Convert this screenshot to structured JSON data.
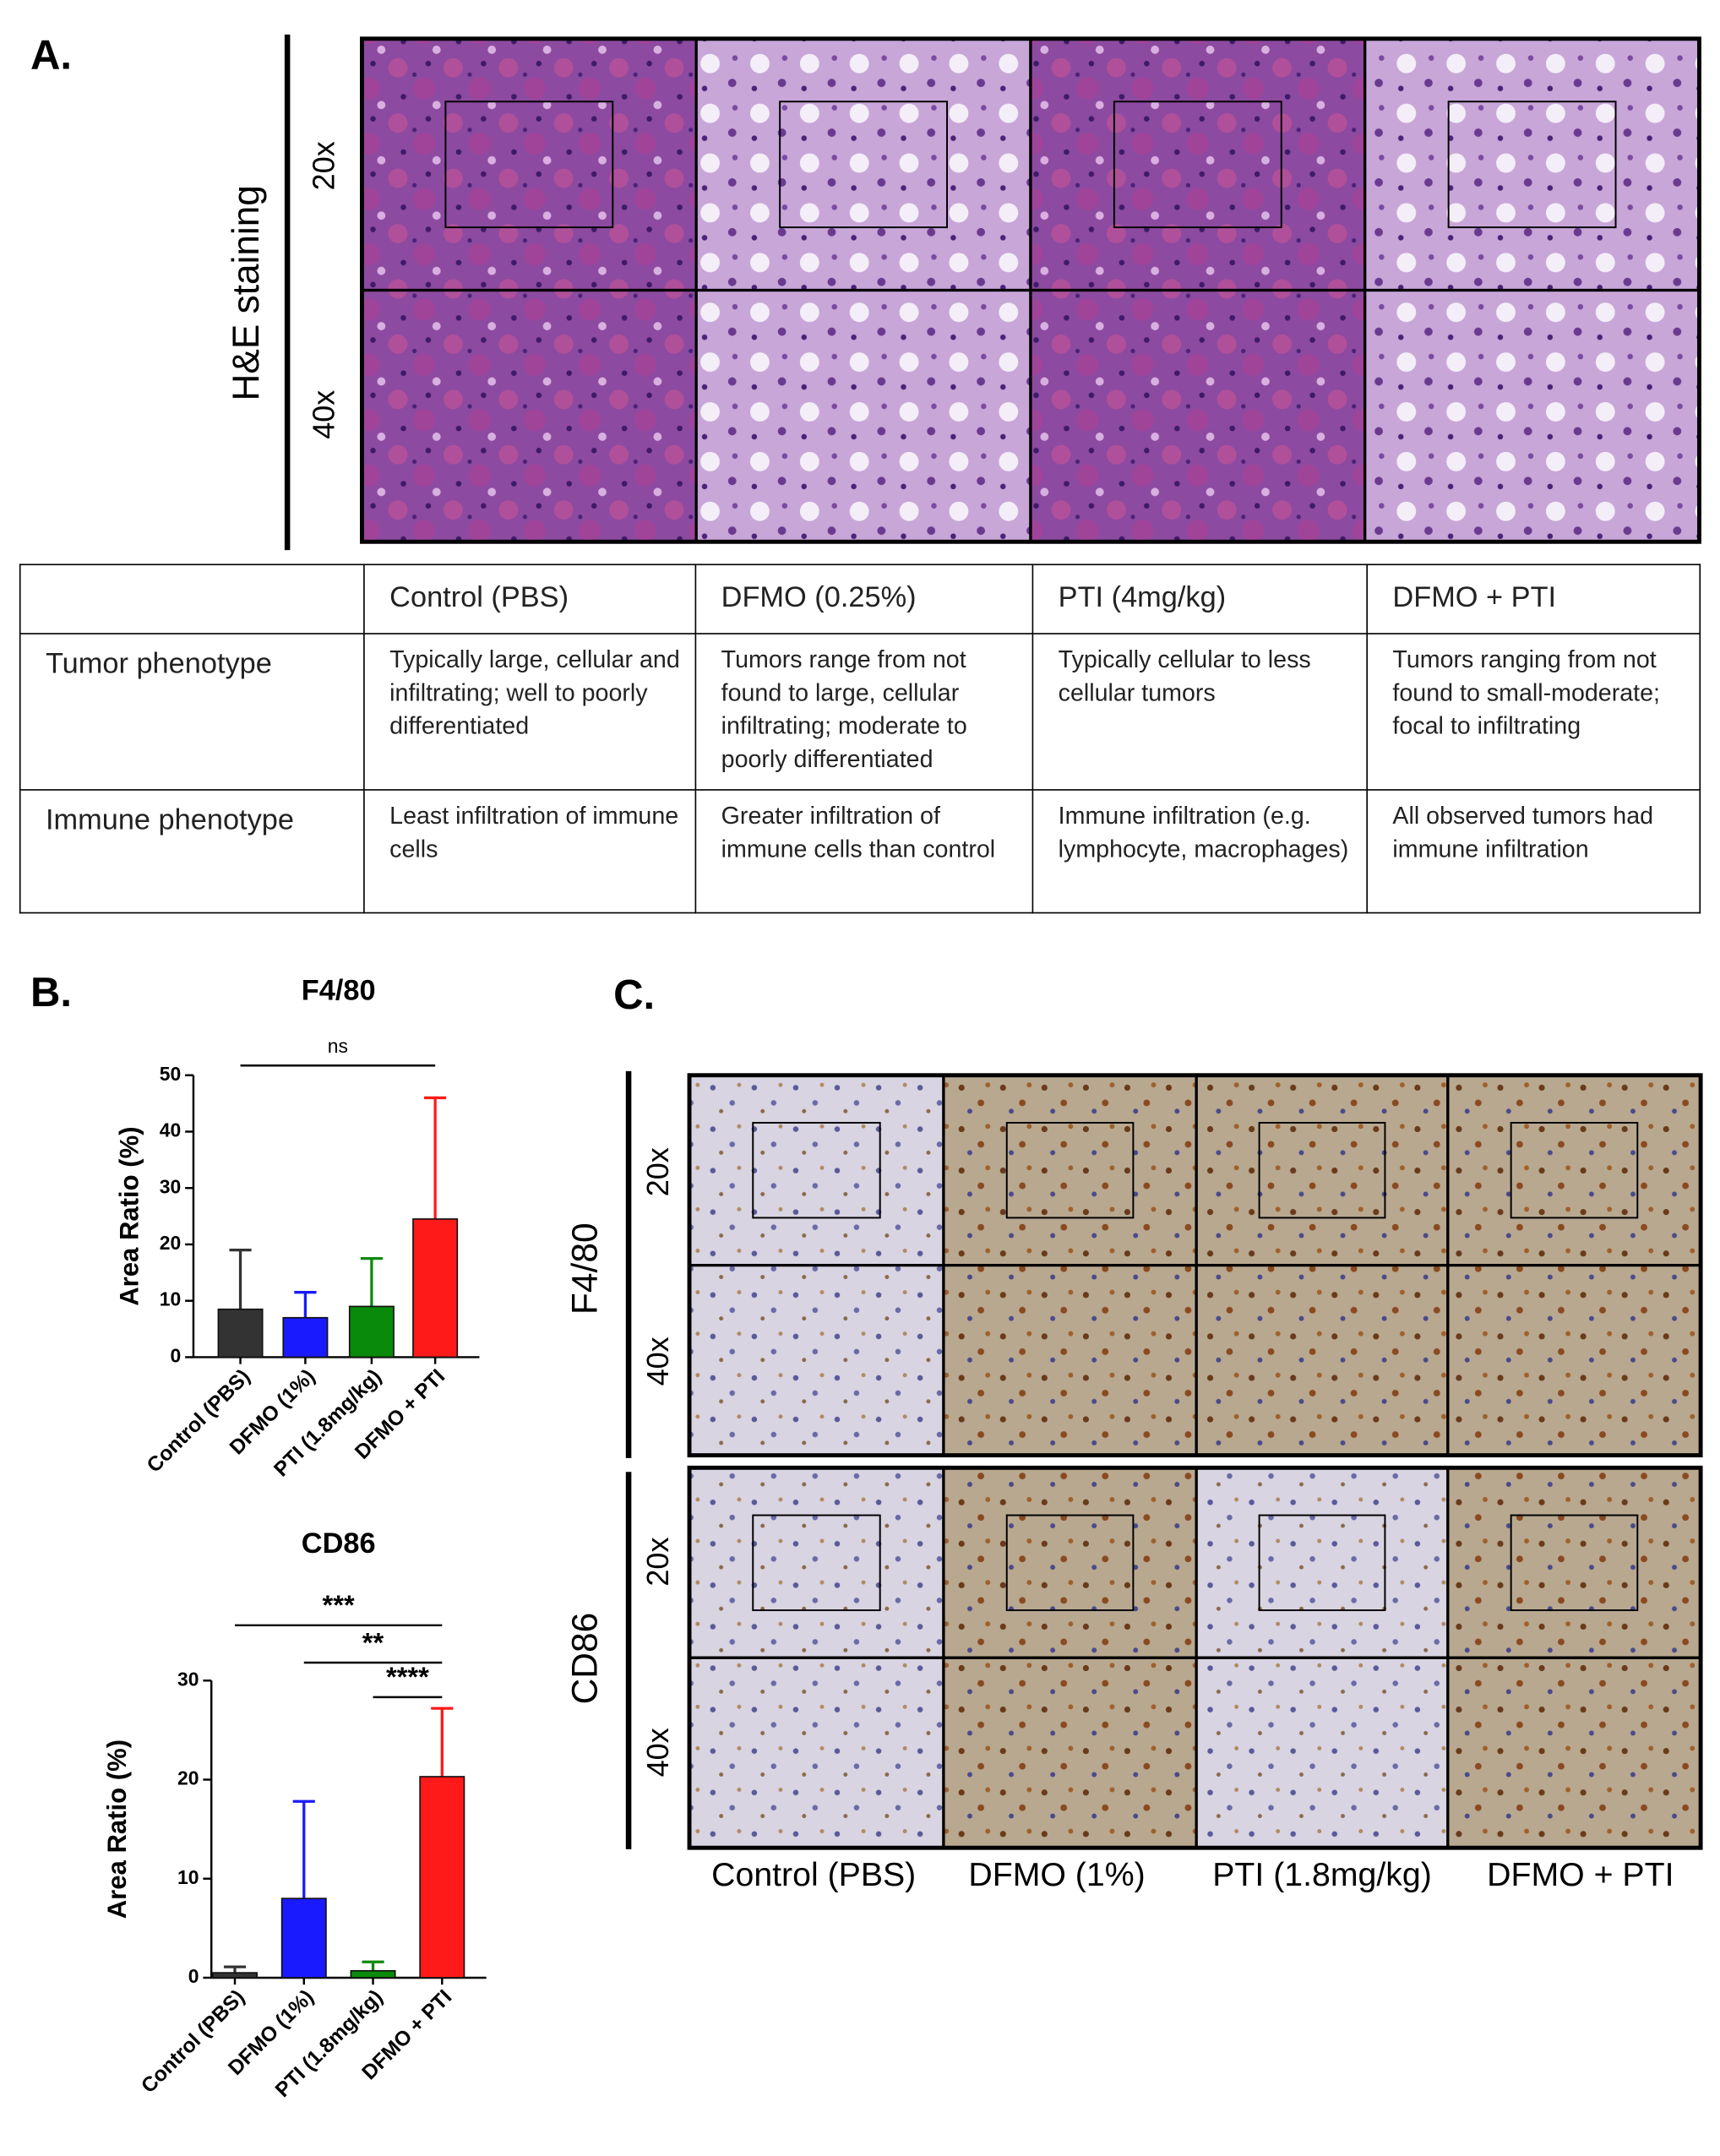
{
  "panel_a": {
    "label": "A.",
    "stain": "H&E staining",
    "magnifications": [
      "20x",
      "40x"
    ],
    "table": {
      "header": [
        "Control (PBS)",
        "DFMO (0.25%)",
        "PTI (4mg/kg)",
        "DFMO + PTI"
      ],
      "rows": [
        {
          "label": "Tumor phenotype",
          "cells": [
            "Typically large, cellular and infiltrating; well to poorly differentiated",
            "Tumors range from not found to large, cellular infiltrating; moderate to poorly differentiated",
            "Typically cellular to less cellular tumors",
            "Tumors ranging from not found to small-moderate; focal to infiltrating"
          ]
        },
        {
          "label": "Immune phenotype",
          "cells": [
            "Least infiltration of immune cells",
            "Greater infiltration of immune cells than control",
            "Immune infiltration (e.g. lymphocyte, macrophages)",
            "All observed tumors had immune infiltration"
          ]
        }
      ]
    }
  },
  "chart_data": [
    {
      "type": "bar",
      "panel_label": "B.",
      "title": "F4/80",
      "y_label": "Area Ratio (%)",
      "categories": [
        "Control (PBS)",
        "DFMO (1%)",
        "PTI (1.8mg/kg)",
        "DFMO + PTI"
      ],
      "values": [
        8.5,
        7,
        9,
        24.5
      ],
      "errors": [
        10.5,
        4.5,
        8.5,
        21.5
      ],
      "colors": [
        "#333333",
        "#1a1aff",
        "#0a8a0a",
        "#ff1a1a"
      ],
      "ylim": [
        0,
        50
      ],
      "yticks": [
        0,
        10,
        20,
        30,
        40,
        50
      ],
      "comparisons": [
        {
          "from": 0,
          "to": 3,
          "label": "ns"
        }
      ]
    },
    {
      "type": "bar",
      "title": "CD86",
      "y_label": "Area Ratio (%)",
      "categories": [
        "Control (PBS)",
        "DFMO (1%)",
        "PTI (1.8mg/kg)",
        "DFMO + PTI"
      ],
      "values": [
        0.5,
        8,
        0.7,
        20.3
      ],
      "errors": [
        0.6,
        9.8,
        0.9,
        6.9
      ],
      "colors": [
        "#333333",
        "#1a1aff",
        "#0a8a0a",
        "#ff1a1a"
      ],
      "ylim": [
        0,
        30
      ],
      "yticks": [
        0,
        10,
        20,
        30
      ],
      "comparisons": [
        {
          "from": 0,
          "to": 3,
          "label": "***"
        },
        {
          "from": 1,
          "to": 3,
          "label": "**"
        },
        {
          "from": 2,
          "to": 3,
          "label": "****"
        }
      ]
    }
  ],
  "panel_c": {
    "label": "C.",
    "markers": [
      "F4/80",
      "CD86"
    ],
    "magnifications": [
      "20x",
      "40x"
    ],
    "groups": [
      "Control (PBS)",
      "DFMO (1%)",
      "PTI (1.8mg/kg)",
      "DFMO + PTI"
    ]
  }
}
